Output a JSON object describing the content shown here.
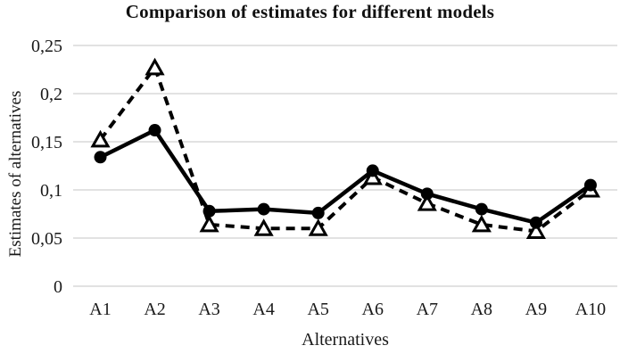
{
  "chart_data": {
    "type": "line",
    "title": "Comparison of estimates for different models",
    "xlabel": "Alternatives",
    "ylabel": "Estimates of alternatives",
    "categories": [
      "A1",
      "A2",
      "A3",
      "A4",
      "A5",
      "A6",
      "A7",
      "A8",
      "A9",
      "A10"
    ],
    "series": [
      {
        "name": "model-1-solid-filled-circles",
        "line_style": "solid",
        "marker": "filled-circle",
        "values": [
          0.134,
          0.162,
          0.078,
          0.08,
          0.076,
          0.12,
          0.096,
          0.08,
          0.066,
          0.105
        ]
      },
      {
        "name": "model-2-dashed-open-triangles",
        "line_style": "dashed",
        "marker": "open-triangle",
        "values": [
          0.152,
          0.227,
          0.064,
          0.06,
          0.06,
          0.113,
          0.086,
          0.064,
          0.057,
          0.1
        ]
      }
    ],
    "ylim": [
      0,
      0.25
    ],
    "yticks": [
      0,
      0.05,
      0.1,
      0.15,
      0.2,
      0.25
    ],
    "ytick_labels": [
      "0",
      "0,05",
      "0,1",
      "0,15",
      "0,2",
      "0,25"
    ],
    "grid": "horizontal-only",
    "legend": "none",
    "colors": {
      "series": "#000000",
      "grid": "#d9d9d9",
      "text": "#1a1a1a",
      "background": "#ffffff",
      "triangle_fill": "#ffffff"
    }
  }
}
